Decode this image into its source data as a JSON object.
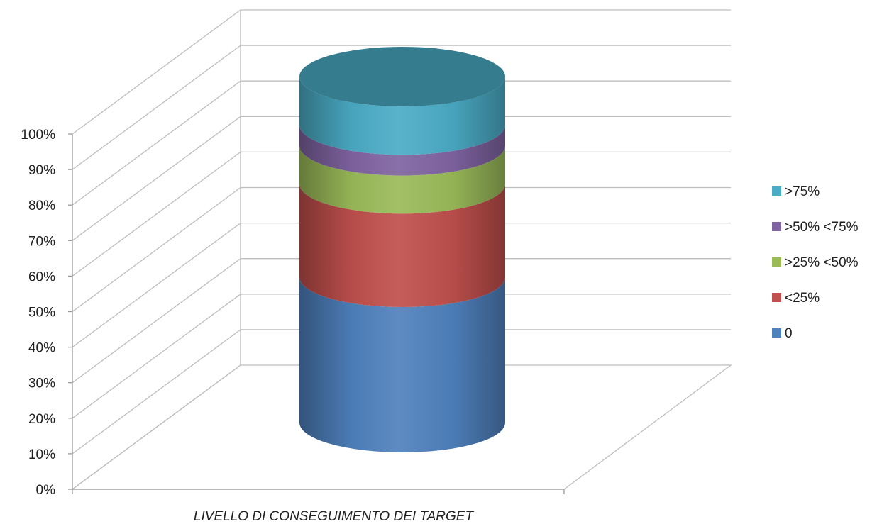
{
  "chart_data": {
    "type": "bar",
    "stacked": true,
    "style": "3d-cylinder",
    "categories": [
      "LIVELLO DI CONSEGUIMENTO DEI TARGET"
    ],
    "xlabel": "LIVELLO DI CONSEGUIMENTO DEI TARGET",
    "ylabel": "",
    "ylim": [
      0,
      100
    ],
    "y_ticks": [
      "0%",
      "10%",
      "20%",
      "30%",
      "40%",
      "50%",
      "60%",
      "70%",
      "80%",
      "90%",
      "100%"
    ],
    "grid": true,
    "legend_position": "right",
    "series": [
      {
        "name": "0",
        "values": [
          42
        ],
        "color": "#4F81BD"
      },
      {
        "name": "<25%",
        "values": [
          27
        ],
        "color": "#C0504D"
      },
      {
        "name": ">25% <50%",
        "values": [
          11
        ],
        "color": "#9BBB59"
      },
      {
        "name": ">50% <75%",
        "values": [
          6
        ],
        "color": "#8064A2"
      },
      {
        "name": ">75%",
        "values": [
          14
        ],
        "color": "#4BACC6"
      }
    ]
  }
}
